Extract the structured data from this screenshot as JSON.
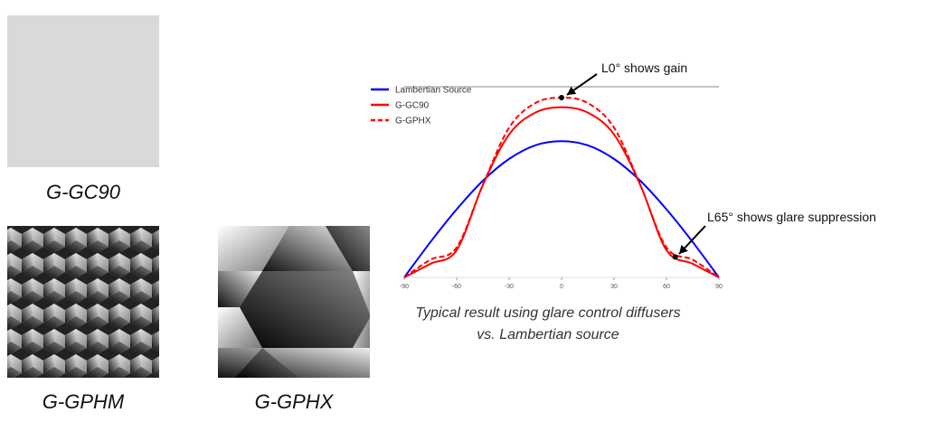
{
  "swatches": [
    {
      "label": "G-GC90"
    },
    {
      "label": "G-GPHM"
    },
    {
      "label": "G-GPHX"
    }
  ],
  "chart_data": {
    "type": "line",
    "x": [
      -90,
      -75,
      -60,
      -45,
      -30,
      -15,
      0,
      15,
      30,
      45,
      60,
      75,
      90
    ],
    "series": [
      {
        "name": "Lambertian Source",
        "color": "#0000ff",
        "dashed": false,
        "values": [
          0,
          0.26,
          0.5,
          0.71,
          0.87,
          0.97,
          1,
          0.97,
          0.87,
          0.71,
          0.5,
          0.26,
          0
        ]
      },
      {
        "name": "G-GC90",
        "color": "#ff0000",
        "dashed": false,
        "values": [
          0,
          0.1,
          0.2,
          0.68,
          1.05,
          1.21,
          1.25,
          1.21,
          1.05,
          0.68,
          0.2,
          0.1,
          0
        ]
      },
      {
        "name": "G-GPHX",
        "color": "#ff0000",
        "dashed": true,
        "values": [
          0,
          0.13,
          0.22,
          0.68,
          1.1,
          1.28,
          1.32,
          1.28,
          1.1,
          0.68,
          0.22,
          0.13,
          0
        ]
      }
    ],
    "xlim": [
      -90,
      90
    ],
    "ylim": [
      0,
      1.4
    ],
    "xticks": [
      -90,
      -60,
      -30,
      0,
      30,
      60,
      90
    ],
    "annotations": [
      {
        "text": "L0° shows gain",
        "x": 0,
        "y": 1.32
      },
      {
        "text": "L65° shows glare suppression",
        "x": 65,
        "y": 0.15
      }
    ],
    "caption": [
      "Typical result using glare control diffusers",
      "vs. Lambertian source"
    ],
    "legend": "upper left"
  }
}
